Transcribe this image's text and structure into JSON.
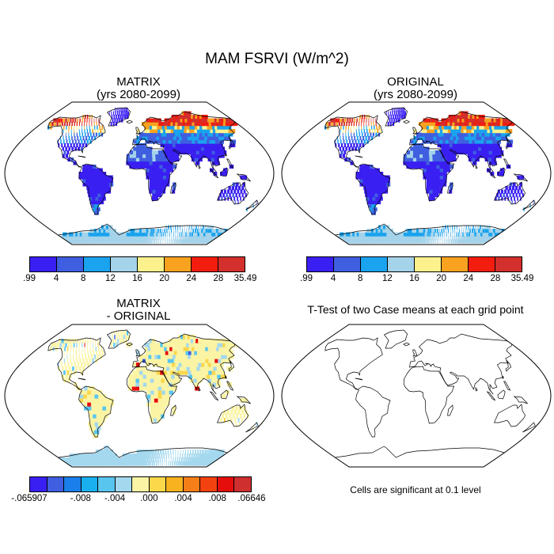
{
  "title": "MAM FSRVI (W/m^2)",
  "panels": [
    {
      "title": "MATRIX",
      "subtitle": "(yrs 2080-2099)"
    },
    {
      "title": "ORIGINAL",
      "subtitle": "(yrs 2080-2099)"
    },
    {
      "title": "MATRIX",
      "subtitle": "- ORIGINAL"
    },
    {
      "title": "T-Test of two Case means at each grid point",
      "subtitle": ""
    }
  ],
  "footnote": "Cells are significant at 0.1 level",
  "colorbar_levels": {
    "labels": [
      ".99",
      "4",
      "8",
      "12",
      "16",
      "20",
      "24",
      "28",
      "35.49"
    ],
    "colors": [
      "#3a1ff2",
      "#3f5fe0",
      "#1aa3ee",
      "#a4d3ea",
      "#fbf28d",
      "#f8a21f",
      "#f21d0f",
      "#d22f2d"
    ]
  },
  "colorbar_diff": {
    "labels": [
      "-.065907",
      "-.008",
      "-.004",
      ".000",
      ".004",
      ".008",
      ".06646"
    ],
    "colors": [
      "#3a1ff2",
      "#3f5fe0",
      "#1a7fea",
      "#1ab0f0",
      "#58c5ee",
      "#a4d8ee",
      "#fbf4a4",
      "#fbd74a",
      "#f8b21f",
      "#f57e18",
      "#f2420f",
      "#e60d0d",
      "#cf2f2f"
    ]
  }
}
